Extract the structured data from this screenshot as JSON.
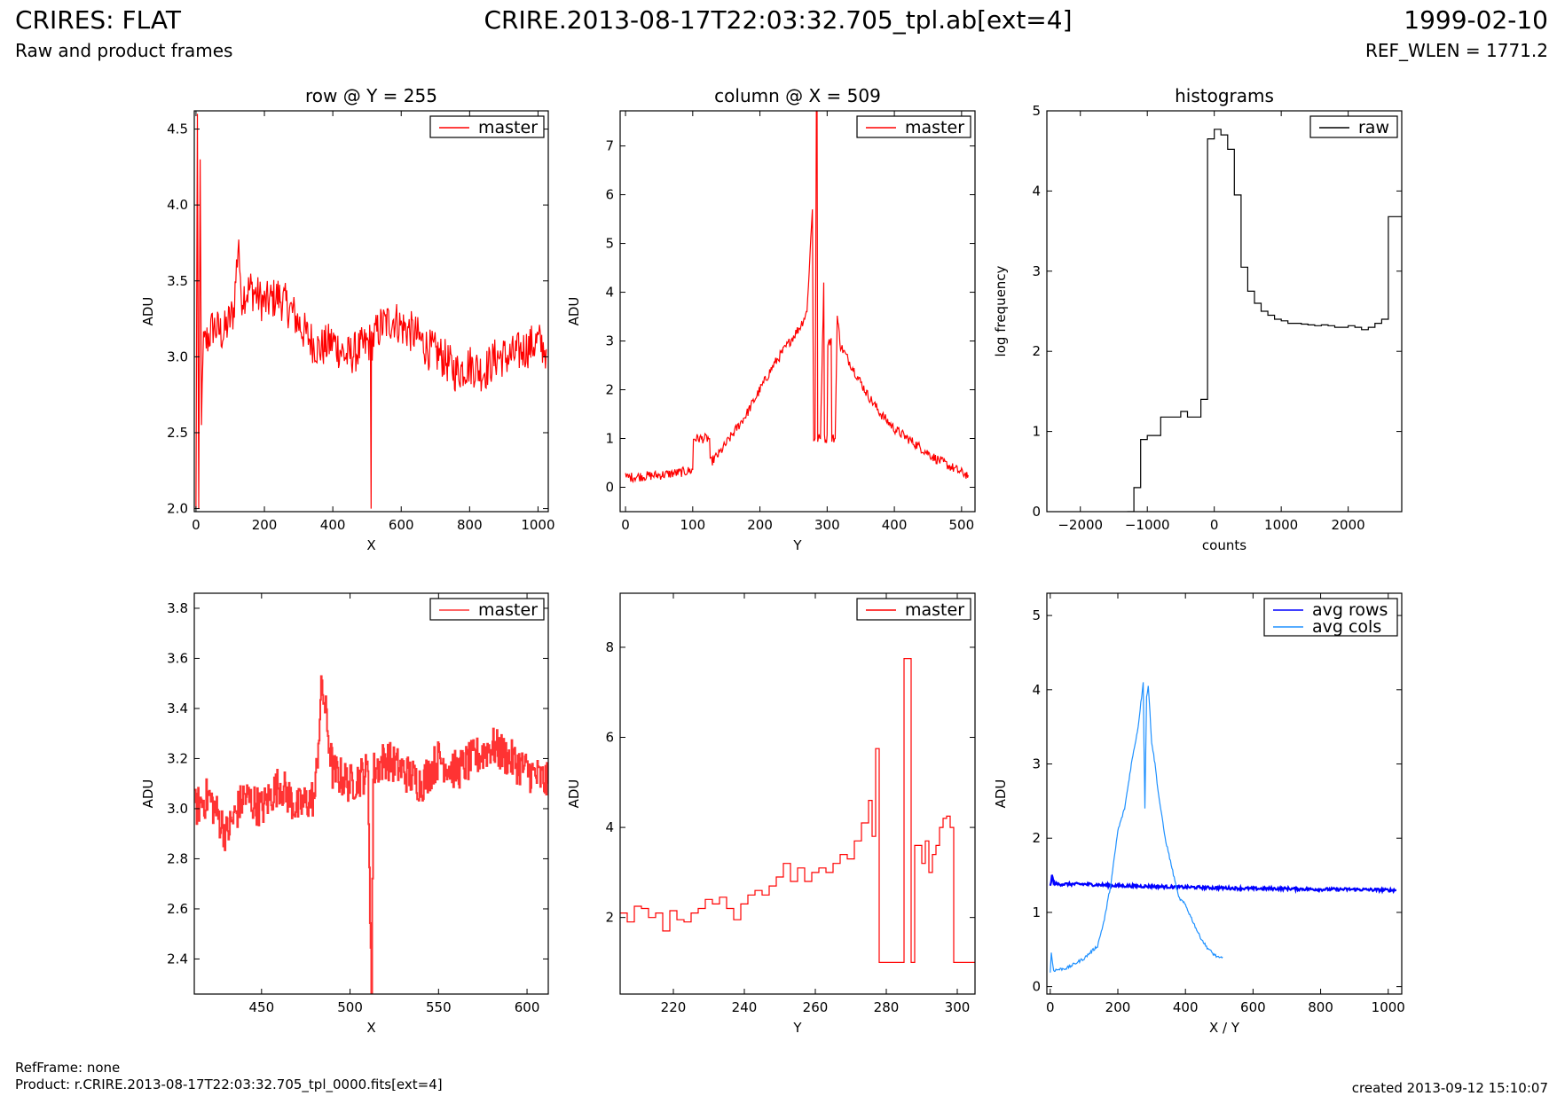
{
  "header": {
    "title": "CRIRES: FLAT",
    "subtitle": "Raw and product frames",
    "file": "CRIRE.2013-08-17T22:03:32.705_tpl.ab[ext=4]",
    "date": "1999-02-10",
    "ref_wlen": "REF_WLEN = 1771.2"
  },
  "footer": {
    "ref_frame": "RefFrame: none",
    "product": "Product: r.CRIRE.2013-08-17T22:03:32.705_tpl_0000.fits[ext=4]",
    "created": "created 2013-09-12 15:10:07"
  },
  "colors": {
    "master": "#ff0000",
    "master_zoom": "#ff3333",
    "raw": "#000000",
    "avg_rows": "#0000ff",
    "avg_cols": "#1e90ff"
  },
  "chart_data": [
    {
      "type": "line",
      "title": "row @ Y = 255",
      "xlabel": "X",
      "ylabel": "ADU",
      "xlim": [
        -5,
        1030
      ],
      "ylim": [
        1.98,
        4.62
      ],
      "xticks": [
        0,
        200,
        400,
        600,
        800,
        1000
      ],
      "xtick_labels": [
        "0",
        "200",
        "400",
        "600",
        "800",
        "1000"
      ],
      "yticks": [
        2.0,
        2.5,
        3.0,
        3.5,
        4.0,
        4.5
      ],
      "ytick_labels": [
        "2.0",
        "2.5",
        "3.0",
        "3.5",
        "4.0",
        "4.5"
      ],
      "legend": "top-right",
      "series": [
        {
          "name": "master",
          "color": "#ff0000",
          "x": [
            0,
            4,
            8,
            12,
            16,
            20,
            30,
            50,
            80,
            110,
            125,
            130,
            160,
            200,
            240,
            280,
            320,
            360,
            400,
            440,
            480,
            510,
            512,
            513,
            540,
            580,
            600,
            640,
            680,
            720,
            760,
            800,
            840,
            880,
            920,
            960,
            1000,
            1024
          ],
          "y": [
            2.0,
            4.6,
            2.0,
            4.3,
            2.5,
            3.05,
            3.1,
            3.2,
            3.15,
            3.3,
            3.8,
            3.4,
            3.45,
            3.35,
            3.4,
            3.3,
            3.15,
            3.05,
            3.1,
            3.0,
            3.05,
            3.1,
            2.0,
            3.1,
            3.2,
            3.25,
            3.2,
            3.15,
            3.05,
            3.0,
            2.9,
            2.95,
            2.9,
            3.0,
            3.0,
            3.05,
            3.1,
            3.05
          ],
          "noise": 0.28
        }
      ]
    },
    {
      "type": "line",
      "title": "column @ X = 509",
      "xlabel": "Y",
      "ylabel": "ADU",
      "xlim": [
        -8,
        520
      ],
      "ylim": [
        -0.5,
        7.72
      ],
      "xticks": [
        0,
        100,
        200,
        300,
        400,
        500
      ],
      "xtick_labels": [
        "0",
        "100",
        "200",
        "300",
        "400",
        "500"
      ],
      "yticks": [
        0,
        1,
        2,
        3,
        4,
        5,
        6,
        7
      ],
      "ytick_labels": [
        "0",
        "1",
        "2",
        "3",
        "4",
        "5",
        "6",
        "7"
      ],
      "legend": "top-right",
      "series": [
        {
          "name": "master",
          "color": "#ff0000",
          "x": [
            0,
            20,
            50,
            80,
            100,
            101,
            115,
            125,
            126,
            140,
            160,
            180,
            200,
            220,
            240,
            260,
            270,
            278,
            280,
            282,
            284,
            285,
            286,
            290,
            295,
            296,
            300,
            301,
            306,
            307,
            312,
            315,
            320,
            340,
            360,
            380,
            400,
            420,
            440,
            460,
            480,
            500,
            510
          ],
          "y": [
            0.2,
            0.22,
            0.25,
            0.3,
            0.35,
            1.0,
            1.0,
            1.0,
            0.5,
            0.7,
            1.1,
            1.5,
            2.0,
            2.5,
            2.9,
            3.3,
            3.6,
            5.7,
            1.0,
            1.0,
            7.72,
            7.72,
            1.0,
            1.0,
            4.2,
            1.0,
            1.0,
            3.0,
            3.0,
            1.0,
            1.0,
            3.5,
            2.9,
            2.4,
            1.9,
            1.5,
            1.2,
            1.0,
            0.8,
            0.6,
            0.45,
            0.3,
            0.25
          ],
          "noise": 0.2
        }
      ]
    },
    {
      "type": "line",
      "title": "histograms",
      "xlabel": "counts",
      "ylabel": "log frequency",
      "xlim": [
        -2500,
        2800
      ],
      "ylim": [
        0,
        5
      ],
      "xticks": [
        -2000,
        -1000,
        0,
        1000,
        2000
      ],
      "xtick_labels": [
        "−2000",
        "−1000",
        "0",
        "1000",
        "2000"
      ],
      "yticks": [
        0,
        1,
        2,
        3,
        4,
        5
      ],
      "ytick_labels": [
        "0",
        "1",
        "2",
        "3",
        "4",
        "5"
      ],
      "legend": "top-right",
      "series": [
        {
          "name": "raw",
          "color": "#000000",
          "step": true,
          "x": [
            -1300,
            -1200,
            -1100,
            -1000,
            -900,
            -800,
            -700,
            -600,
            -500,
            -400,
            -300,
            -200,
            -100,
            0,
            100,
            200,
            300,
            400,
            500,
            600,
            700,
            800,
            900,
            1000,
            1100,
            1200,
            1300,
            1400,
            1500,
            1600,
            1700,
            1800,
            1900,
            2000,
            2100,
            2200,
            2300,
            2400,
            2500,
            2600,
            2700,
            2800
          ],
          "y": [
            0,
            0.3,
            0.9,
            0.95,
            0.95,
            1.18,
            1.18,
            1.18,
            1.25,
            1.18,
            1.18,
            1.4,
            4.65,
            4.77,
            4.7,
            4.52,
            3.95,
            3.05,
            2.75,
            2.6,
            2.5,
            2.45,
            2.4,
            2.38,
            2.35,
            2.35,
            2.34,
            2.33,
            2.32,
            2.33,
            2.32,
            2.3,
            2.3,
            2.32,
            2.3,
            2.27,
            2.3,
            2.35,
            2.4,
            3.68,
            3.68,
            3.68
          ]
        }
      ]
    },
    {
      "type": "line",
      "title": "",
      "xlabel": "X",
      "ylabel": "ADU",
      "xlim": [
        412,
        612
      ],
      "ylim": [
        2.26,
        3.86
      ],
      "xticks": [
        450,
        500,
        550,
        600
      ],
      "xtick_labels": [
        "450",
        "500",
        "550",
        "600"
      ],
      "yticks": [
        2.4,
        2.6,
        2.8,
        3.0,
        3.2,
        3.4,
        3.6,
        3.8
      ],
      "ytick_labels": [
        "2.4",
        "2.6",
        "2.8",
        "3.0",
        "3.2",
        "3.4",
        "3.6",
        "3.8"
      ],
      "legend": "top-right",
      "series": [
        {
          "name": "master",
          "color": "#ff3333",
          "step": true,
          "x": [
            412,
            420,
            430,
            440,
            450,
            460,
            470,
            480,
            484,
            490,
            500,
            510,
            512,
            513,
            520,
            530,
            540,
            550,
            560,
            570,
            580,
            590,
            600,
            612
          ],
          "y": [
            3.0,
            3.05,
            2.9,
            3.05,
            3.0,
            3.1,
            3.0,
            3.05,
            3.5,
            3.15,
            3.1,
            3.15,
            2.26,
            3.15,
            3.2,
            3.15,
            3.1,
            3.2,
            3.15,
            3.2,
            3.25,
            3.2,
            3.15,
            3.1
          ],
          "noise": 0.16
        }
      ]
    },
    {
      "type": "line",
      "title": "",
      "xlabel": "Y",
      "ylabel": "ADU",
      "xlim": [
        205,
        305
      ],
      "ylim": [
        0.3,
        9.2
      ],
      "xticks": [
        220,
        240,
        260,
        280,
        300
      ],
      "xtick_labels": [
        "220",
        "240",
        "260",
        "280",
        "300"
      ],
      "yticks": [
        2,
        4,
        6,
        8
      ],
      "ytick_labels": [
        "2",
        "4",
        "6",
        "8"
      ],
      "legend": "top-right",
      "series": [
        {
          "name": "master",
          "color": "#ff0000",
          "step": true,
          "x": [
            205,
            207,
            209,
            211,
            213,
            215,
            217,
            219,
            221,
            223,
            225,
            227,
            229,
            231,
            233,
            235,
            237,
            239,
            241,
            243,
            245,
            247,
            249,
            251,
            253,
            255,
            257,
            259,
            261,
            263,
            265,
            267,
            269,
            271,
            273,
            275,
            276,
            277,
            278,
            282,
            284,
            285,
            286,
            287,
            288,
            290,
            291,
            292,
            293,
            294,
            295,
            296,
            297,
            298,
            299,
            305
          ],
          "y": [
            2.1,
            1.9,
            2.25,
            2.2,
            2.0,
            2.1,
            1.7,
            2.15,
            1.95,
            1.9,
            2.1,
            2.2,
            2.4,
            2.3,
            2.45,
            2.2,
            1.95,
            2.3,
            2.5,
            2.6,
            2.5,
            2.7,
            2.9,
            3.2,
            2.8,
            3.1,
            2.8,
            3.0,
            3.1,
            3.0,
            3.2,
            3.4,
            3.3,
            3.7,
            4.1,
            4.6,
            3.8,
            5.75,
            1.0,
            1.0,
            1.0,
            7.75,
            7.75,
            1.0,
            3.6,
            3.2,
            3.7,
            3.0,
            3.4,
            3.6,
            4.0,
            4.2,
            4.25,
            4.0,
            1.0,
            1.0
          ]
        }
      ]
    },
    {
      "type": "line",
      "title": "",
      "xlabel": "X / Y",
      "ylabel": "ADU",
      "xlim": [
        -10,
        1040
      ],
      "ylim": [
        -0.1,
        5.3
      ],
      "xticks": [
        0,
        200,
        400,
        600,
        800,
        1000
      ],
      "xtick_labels": [
        "0",
        "200",
        "400",
        "600",
        "800",
        "1000"
      ],
      "yticks": [
        0,
        1,
        2,
        3,
        4,
        5
      ],
      "ytick_labels": [
        "0",
        "1",
        "2",
        "3",
        "4",
        "5"
      ],
      "legend": "top-right",
      "series": [
        {
          "name": "avg rows",
          "color": "#0000ff",
          "x": [
            0,
            5,
            10,
            20,
            50,
            100,
            200,
            300,
            400,
            500,
            600,
            700,
            800,
            900,
            1000,
            1024
          ],
          "y": [
            1.35,
            1.5,
            1.4,
            1.38,
            1.38,
            1.38,
            1.36,
            1.35,
            1.34,
            1.33,
            1.32,
            1.32,
            1.31,
            1.31,
            1.3,
            1.3
          ],
          "noise": 0.04
        },
        {
          "name": "avg cols",
          "color": "#1e90ff",
          "x": [
            0,
            3,
            10,
            50,
            100,
            140,
            160,
            180,
            200,
            220,
            240,
            260,
            270,
            275,
            280,
            285,
            290,
            295,
            300,
            310,
            320,
            340,
            360,
            380,
            400,
            420,
            440,
            460,
            480,
            500,
            510
          ],
          "y": [
            0.2,
            0.45,
            0.22,
            0.25,
            0.38,
            0.55,
            0.9,
            1.4,
            2.1,
            2.4,
            3.0,
            3.5,
            3.9,
            4.1,
            2.4,
            3.9,
            4.05,
            3.7,
            3.3,
            3.0,
            2.6,
            2.0,
            1.6,
            1.2,
            1.1,
            0.9,
            0.7,
            0.55,
            0.45,
            0.38,
            0.4
          ],
          "noise": 0.04
        }
      ]
    }
  ]
}
